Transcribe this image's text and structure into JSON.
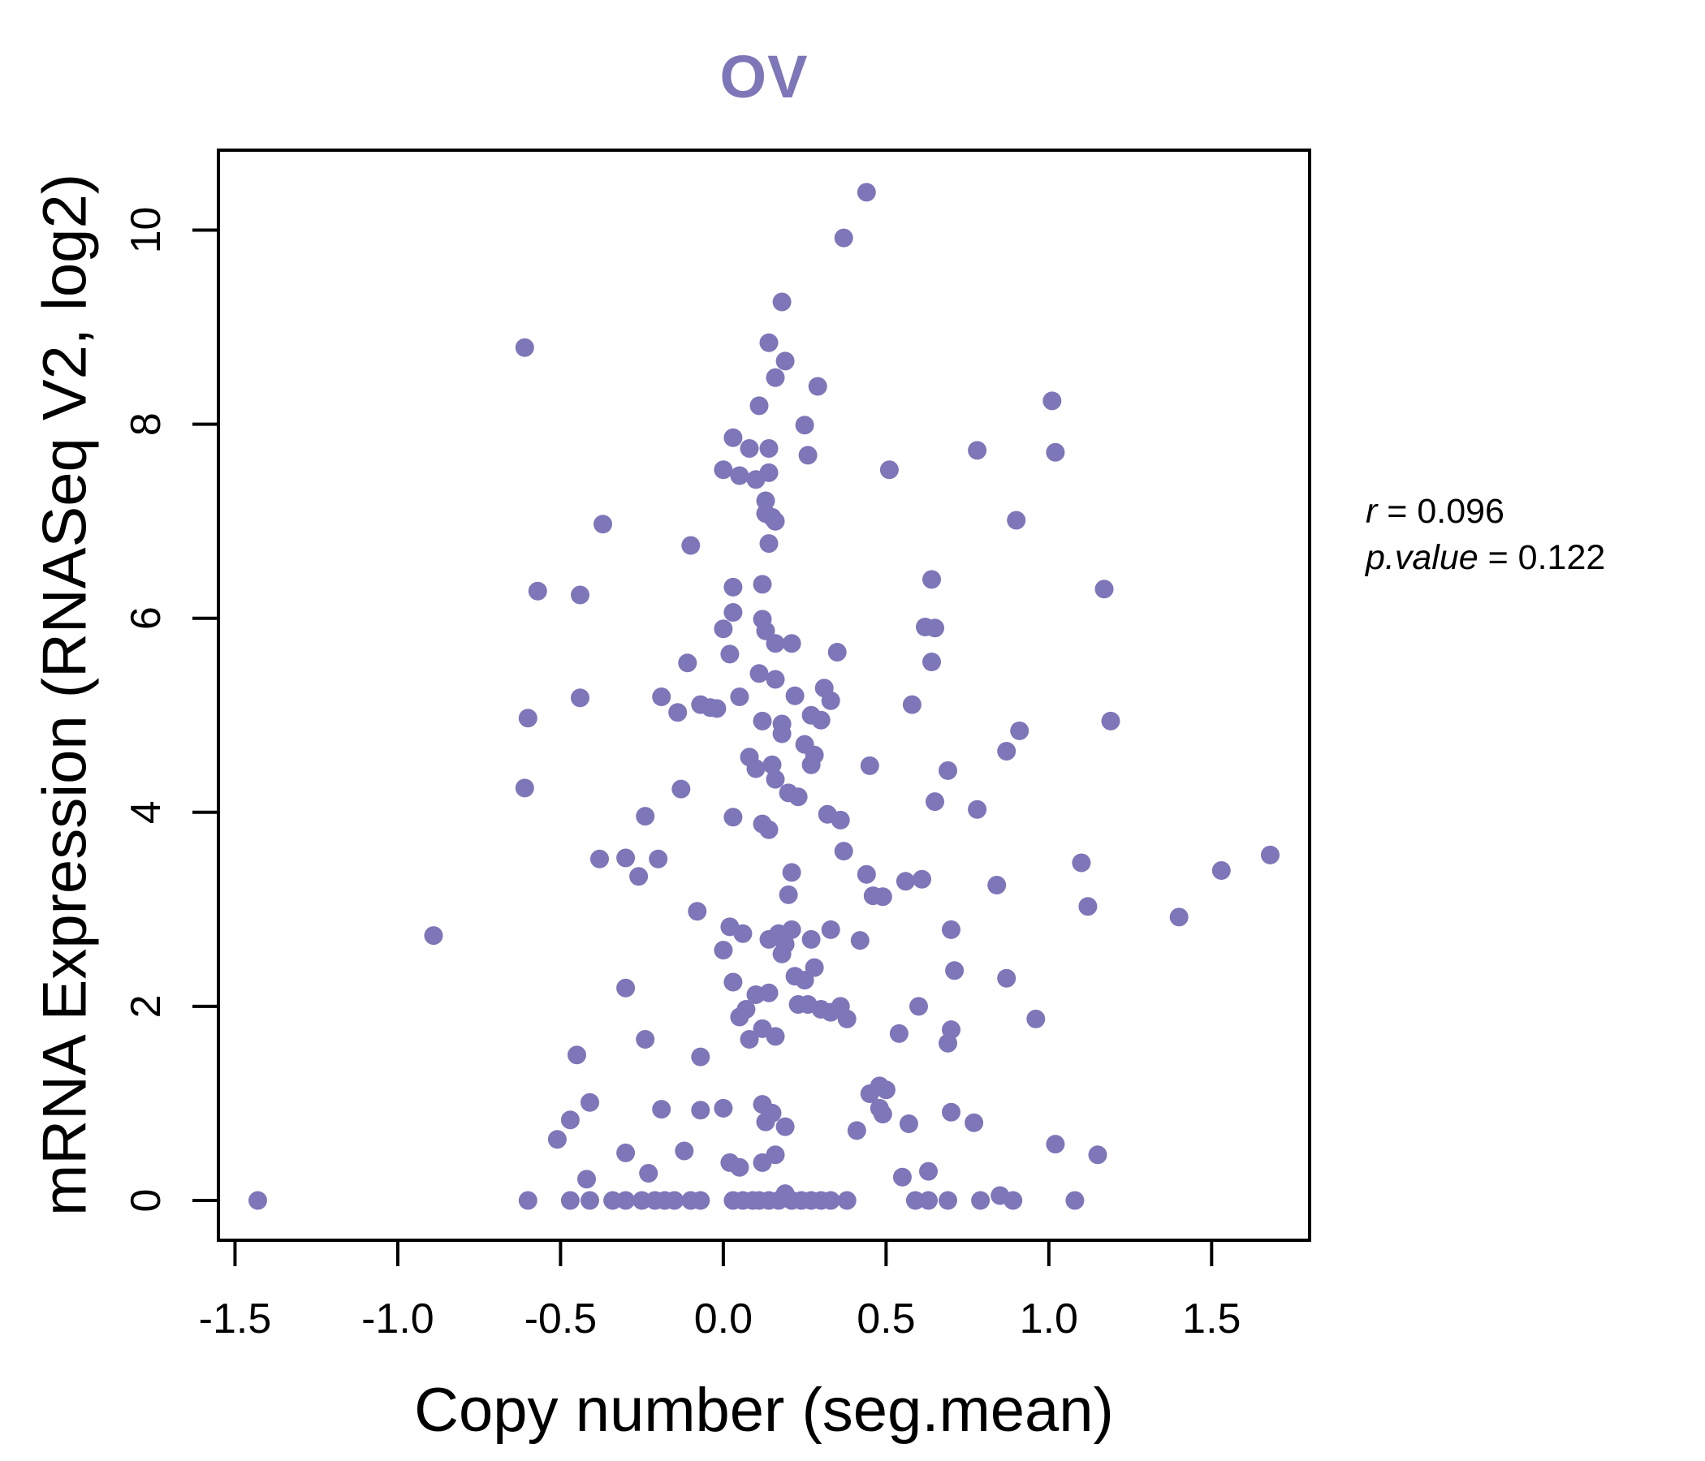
{
  "title": {
    "text": "OV"
  },
  "annotation": {
    "line1_var": "r",
    "line1_rest": " = 0.096",
    "line2_var": "p.value",
    "line2_rest": " = 0.122"
  },
  "chart_data": {
    "type": "scatter",
    "title": "OV",
    "xlabel": "Copy number (seg.mean)",
    "ylabel": "mRNA Expression (RNASeq V2, log2)",
    "x_ticks": [
      -1.5,
      -1.0,
      -0.5,
      0.0,
      0.5,
      1.0,
      1.5
    ],
    "x_tick_labels": [
      "-1.5",
      "-1.0",
      "-0.5",
      "0.0",
      "0.5",
      "1.0",
      "1.5"
    ],
    "y_ticks": [
      0,
      2,
      4,
      6,
      8,
      10
    ],
    "y_tick_labels": [
      "0",
      "2",
      "4",
      "6",
      "8",
      "10"
    ],
    "xlim": [
      -1.551,
      1.801
    ],
    "ylim": [
      -0.41,
      10.824
    ],
    "grid": false,
    "legend": null,
    "point_color": "#7d76b8",
    "title_color": "#7d76b8",
    "stats": {
      "r": "0.096",
      "p_value": "0.122"
    },
    "points": [
      [
        -1.43,
        0
      ],
      [
        -0.89,
        2.73
      ],
      [
        -0.61,
        8.79
      ],
      [
        -0.61,
        4.25
      ],
      [
        -0.6,
        4.97
      ],
      [
        -0.6,
        0
      ],
      [
        -0.57,
        6.28
      ],
      [
        -0.51,
        0.63
      ],
      [
        -0.47,
        0.83
      ],
      [
        -0.47,
        0
      ],
      [
        -0.45,
        1.5
      ],
      [
        -0.44,
        6.24
      ],
      [
        -0.44,
        5.18
      ],
      [
        -0.42,
        0.22
      ],
      [
        -0.41,
        1.01
      ],
      [
        -0.41,
        0
      ],
      [
        -0.38,
        3.52
      ],
      [
        -0.37,
        6.97
      ],
      [
        -0.34,
        0
      ],
      [
        -0.3,
        3.53
      ],
      [
        -0.3,
        2.19
      ],
      [
        -0.3,
        0.49
      ],
      [
        -0.3,
        0
      ],
      [
        -0.26,
        3.34
      ],
      [
        -0.25,
        0
      ],
      [
        -0.24,
        3.96
      ],
      [
        -0.24,
        1.66
      ],
      [
        -0.23,
        0.28
      ],
      [
        -0.21,
        0
      ],
      [
        -0.2,
        3.52
      ],
      [
        -0.19,
        5.19
      ],
      [
        -0.19,
        0.94
      ],
      [
        -0.18,
        0
      ],
      [
        -0.15,
        0
      ],
      [
        -0.14,
        5.03
      ],
      [
        -0.13,
        4.24
      ],
      [
        -0.12,
        0.51
      ],
      [
        -0.11,
        5.54
      ],
      [
        -0.1,
        6.75
      ],
      [
        -0.1,
        0
      ],
      [
        -0.08,
        2.98
      ],
      [
        -0.07,
        5.11
      ],
      [
        -0.07,
        1.48
      ],
      [
        -0.07,
        0.93
      ],
      [
        -0.07,
        0
      ],
      [
        -0.04,
        5.08
      ],
      [
        -0.02,
        5.07
      ],
      [
        0,
        7.53
      ],
      [
        0,
        5.89
      ],
      [
        0,
        2.58
      ],
      [
        0,
        0.95
      ],
      [
        0.02,
        5.63
      ],
      [
        0.02,
        2.82
      ],
      [
        0.02,
        0.39
      ],
      [
        0.03,
        7.86
      ],
      [
        0.03,
        6.32
      ],
      [
        0.03,
        6.06
      ],
      [
        0.03,
        3.95
      ],
      [
        0.03,
        2.25
      ],
      [
        0.03,
        0
      ],
      [
        0.05,
        7.47
      ],
      [
        0.05,
        5.19
      ],
      [
        0.05,
        1.89
      ],
      [
        0.05,
        0.34
      ],
      [
        0.06,
        2.75
      ],
      [
        0.06,
        0
      ],
      [
        0.07,
        1.97
      ],
      [
        0.08,
        7.75
      ],
      [
        0.08,
        4.57
      ],
      [
        0.08,
        1.66
      ],
      [
        0.09,
        0
      ],
      [
        0.1,
        7.43
      ],
      [
        0.1,
        4.45
      ],
      [
        0.1,
        2.12
      ],
      [
        0.11,
        8.19
      ],
      [
        0.11,
        5.43
      ],
      [
        0.11,
        0
      ],
      [
        0.12,
        6.35
      ],
      [
        0.12,
        5.99
      ],
      [
        0.12,
        4.94
      ],
      [
        0.12,
        3.88
      ],
      [
        0.12,
        1.77
      ],
      [
        0.12,
        0.99
      ],
      [
        0.12,
        0.39
      ],
      [
        0.13,
        7.21
      ],
      [
        0.13,
        7.08
      ],
      [
        0.13,
        5.87
      ],
      [
        0.13,
        0.81
      ],
      [
        0.14,
        8.84
      ],
      [
        0.14,
        7.75
      ],
      [
        0.14,
        7.5
      ],
      [
        0.14,
        6.77
      ],
      [
        0.14,
        3.82
      ],
      [
        0.14,
        2.69
      ],
      [
        0.14,
        2.14
      ],
      [
        0.14,
        0
      ],
      [
        0.15,
        7.04
      ],
      [
        0.15,
        4.49
      ],
      [
        0.15,
        0.9
      ],
      [
        0.16,
        8.48
      ],
      [
        0.16,
        7.0
      ],
      [
        0.16,
        5.74
      ],
      [
        0.16,
        5.37
      ],
      [
        0.16,
        4.34
      ],
      [
        0.16,
        1.69
      ],
      [
        0.16,
        0.47
      ],
      [
        0.17,
        2.75
      ],
      [
        0.17,
        0
      ],
      [
        0.18,
        9.26
      ],
      [
        0.18,
        4.91
      ],
      [
        0.18,
        4.81
      ],
      [
        0.18,
        2.54
      ],
      [
        0.19,
        8.65
      ],
      [
        0.19,
        2.64
      ],
      [
        0.19,
        0.76
      ],
      [
        0.19,
        0.07
      ],
      [
        0.2,
        4.2
      ],
      [
        0.2,
        3.15
      ],
      [
        0.21,
        5.74
      ],
      [
        0.21,
        3.38
      ],
      [
        0.21,
        2.79
      ],
      [
        0.21,
        0
      ],
      [
        0.22,
        5.2
      ],
      [
        0.22,
        2.31
      ],
      [
        0.23,
        4.16
      ],
      [
        0.23,
        2.02
      ],
      [
        0.24,
        0
      ],
      [
        0.25,
        7.99
      ],
      [
        0.25,
        4.7
      ],
      [
        0.25,
        2.27
      ],
      [
        0.26,
        7.68
      ],
      [
        0.26,
        2.02
      ],
      [
        0.27,
        5.0
      ],
      [
        0.27,
        4.49
      ],
      [
        0.27,
        2.69
      ],
      [
        0.27,
        0
      ],
      [
        0.28,
        4.59
      ],
      [
        0.28,
        2.4
      ],
      [
        0.29,
        8.39
      ],
      [
        0.3,
        4.95
      ],
      [
        0.3,
        1.97
      ],
      [
        0.3,
        0
      ],
      [
        0.31,
        5.28
      ],
      [
        0.32,
        3.98
      ],
      [
        0.33,
        5.15
      ],
      [
        0.33,
        2.79
      ],
      [
        0.33,
        1.94
      ],
      [
        0.33,
        0
      ],
      [
        0.35,
        5.65
      ],
      [
        0.36,
        3.92
      ],
      [
        0.36,
        2.0
      ],
      [
        0.37,
        9.92
      ],
      [
        0.37,
        3.6
      ],
      [
        0.38,
        1.87
      ],
      [
        0.38,
        0
      ],
      [
        0.41,
        0.72
      ],
      [
        0.42,
        2.68
      ],
      [
        0.44,
        10.39
      ],
      [
        0.44,
        3.36
      ],
      [
        0.45,
        4.48
      ],
      [
        0.45,
        1.1
      ],
      [
        0.46,
        3.14
      ],
      [
        0.48,
        1.18
      ],
      [
        0.48,
        0.95
      ],
      [
        0.49,
        3.13
      ],
      [
        0.49,
        0.89
      ],
      [
        0.5,
        1.14
      ],
      [
        0.51,
        7.53
      ],
      [
        0.54,
        1.72
      ],
      [
        0.55,
        0.24
      ],
      [
        0.56,
        3.29
      ],
      [
        0.57,
        0.79
      ],
      [
        0.58,
        5.11
      ],
      [
        0.59,
        0
      ],
      [
        0.6,
        2.0
      ],
      [
        0.61,
        3.31
      ],
      [
        0.62,
        5.91
      ],
      [
        0.63,
        0.3
      ],
      [
        0.63,
        0
      ],
      [
        0.64,
        6.4
      ],
      [
        0.64,
        5.55
      ],
      [
        0.65,
        5.9
      ],
      [
        0.65,
        4.11
      ],
      [
        0.69,
        4.43
      ],
      [
        0.69,
        1.62
      ],
      [
        0.69,
        0
      ],
      [
        0.7,
        2.79
      ],
      [
        0.7,
        1.76
      ],
      [
        0.7,
        0.91
      ],
      [
        0.71,
        2.37
      ],
      [
        0.77,
        0.8
      ],
      [
        0.78,
        7.73
      ],
      [
        0.78,
        4.03
      ],
      [
        0.79,
        0
      ],
      [
        0.84,
        3.25
      ],
      [
        0.85,
        0.05
      ],
      [
        0.87,
        4.63
      ],
      [
        0.87,
        2.29
      ],
      [
        0.89,
        0
      ],
      [
        0.9,
        7.01
      ],
      [
        0.91,
        4.84
      ],
      [
        0.96,
        1.87
      ],
      [
        1.01,
        8.24
      ],
      [
        1.02,
        7.71
      ],
      [
        1.02,
        0.58
      ],
      [
        1.08,
        0
      ],
      [
        1.1,
        3.48
      ],
      [
        1.12,
        3.03
      ],
      [
        1.15,
        0.47
      ],
      [
        1.17,
        6.3
      ],
      [
        1.19,
        4.94
      ],
      [
        1.4,
        2.92
      ],
      [
        1.53,
        3.4
      ],
      [
        1.68,
        3.56
      ]
    ]
  }
}
